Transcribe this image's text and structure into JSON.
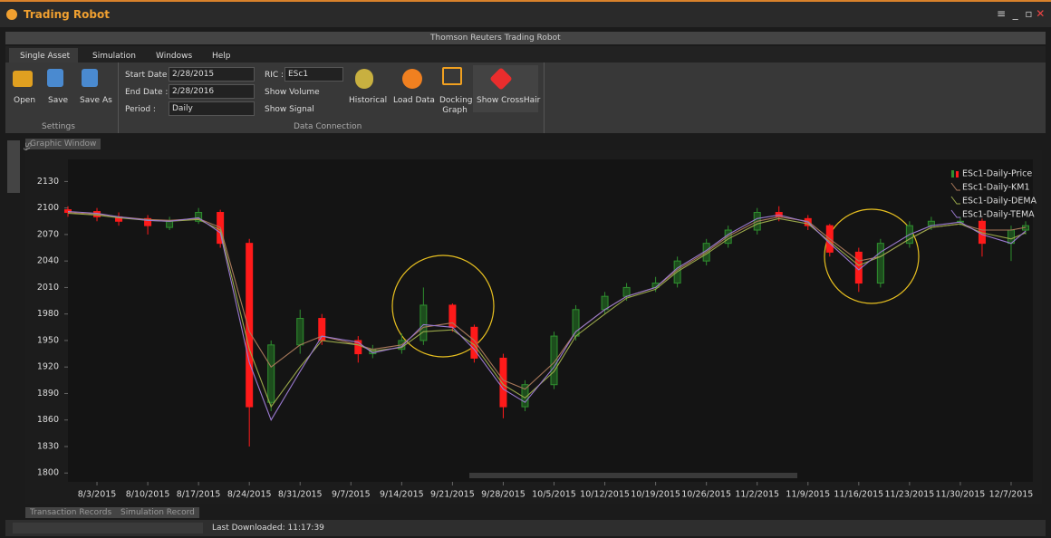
{
  "app_title": "Trading Robot",
  "window_title": "Thomson Reuters Trading Robot",
  "menu": [
    "Single Asset",
    "Simulation",
    "Windows",
    "Help"
  ],
  "ribbon": {
    "open": "Open",
    "save": "Save",
    "save_as": "Save As",
    "settings_group": "Settings",
    "start_date_label": "Start Date :",
    "start_date": "2/28/2015",
    "end_date_label": "End Date :",
    "end_date": "2/28/2016",
    "period_label": "Period :",
    "period": "Daily",
    "ric_label": "RIC :",
    "ric": "ESc1",
    "show_volume": "Show Volume",
    "show_signal": "Show Signal",
    "historical": "Historical",
    "load_data": "Load Data",
    "docking_graph": "Docking Graph",
    "show_crosshair": "Show CrossHair",
    "data_connection_group": "Data Connection"
  },
  "graphic_window_tab": "Graphic Window",
  "symbol_list": "Symbol List",
  "bottom_tabs": [
    "Transaction Records",
    "Simulation Record"
  ],
  "status": "Last Downloaded: 11:17:39",
  "chart_data": {
    "type": "candlestick",
    "x": [
      "7/30/2015",
      "8/3/2015",
      "8/6/2015",
      "8/10/2015",
      "8/13/2015",
      "8/17/2015",
      "8/20/2015",
      "8/24/2015",
      "8/27/2015",
      "8/31/2015",
      "9/3/2015",
      "9/8/2015",
      "9/10/2015",
      "9/14/2015",
      "9/17/2015",
      "9/21/2015",
      "9/24/2015",
      "9/28/2015",
      "10/1/2015",
      "10/5/2015",
      "10/8/2015",
      "10/12/2015",
      "10/15/2015",
      "10/19/2015",
      "10/22/2015",
      "10/26/2015",
      "10/29/2015",
      "11/2/2015",
      "11/5/2015",
      "11/9/2015",
      "11/12/2015",
      "11/16/2015",
      "11/19/2015",
      "11/23/2015",
      "11/26/2015",
      "11/30/2015",
      "12/3/2015",
      "12/7/2015",
      "12/9/2015"
    ],
    "candles": {
      "name": "ESc1-Daily-Price",
      "up_color": "#2f8f2f",
      "down_color": "#ff1a1a",
      "open": [
        2098,
        2096,
        2090,
        2088,
        2078,
        2085,
        2095,
        2060,
        1880,
        1945,
        1975,
        1950,
        1935,
        1940,
        1950,
        1990,
        1965,
        1930,
        1875,
        1900,
        1955,
        1985,
        2000,
        2010,
        2015,
        2040,
        2060,
        2075,
        2095,
        2088,
        2080,
        2050,
        2015,
        2060,
        2080,
        2085,
        2085,
        2060,
        2075
      ],
      "high": [
        2102,
        2100,
        2095,
        2092,
        2090,
        2100,
        2098,
        2065,
        1950,
        1985,
        1980,
        1955,
        1945,
        1958,
        2010,
        1992,
        1968,
        1935,
        1905,
        1960,
        1990,
        2005,
        2015,
        2022,
        2045,
        2065,
        2080,
        2100,
        2102,
        2092,
        2082,
        2055,
        2065,
        2085,
        2090,
        2090,
        2088,
        2080,
        2085
      ],
      "low": [
        2090,
        2085,
        2080,
        2070,
        2075,
        2082,
        2055,
        1830,
        1870,
        1935,
        1945,
        1925,
        1930,
        1935,
        1945,
        1960,
        1925,
        1862,
        1870,
        1895,
        1950,
        1980,
        1995,
        2005,
        2010,
        2035,
        2055,
        2070,
        2085,
        2075,
        2045,
        2005,
        2010,
        2055,
        2075,
        2080,
        2045,
        2040,
        2070
      ],
      "close": [
        2095,
        2090,
        2085,
        2080,
        2085,
        2095,
        2060,
        1875,
        1945,
        1975,
        1950,
        1935,
        1940,
        1950,
        1990,
        1965,
        1930,
        1875,
        1900,
        1955,
        1985,
        2000,
        2010,
        2015,
        2040,
        2060,
        2075,
        2095,
        2090,
        2080,
        2050,
        2015,
        2060,
        2080,
        2085,
        2085,
        2060,
        2075,
        2080
      ]
    },
    "series": [
      {
        "name": "ESc1-Daily-KM1",
        "color": "#a8785a",
        "values": [
          2095,
          2093,
          2090,
          2087,
          2086,
          2088,
          2078,
          1960,
          1920,
          1945,
          1955,
          1945,
          1940,
          1945,
          1965,
          1970,
          1950,
          1905,
          1895,
          1925,
          1960,
          1985,
          2000,
          2010,
          2030,
          2050,
          2068,
          2085,
          2090,
          2085,
          2065,
          2040,
          2045,
          2065,
          2078,
          2082,
          2075,
          2075,
          2078
        ]
      },
      {
        "name": "ESc1-Daily-DEMA",
        "color": "#9aa84a",
        "values": [
          2094,
          2092,
          2089,
          2086,
          2085,
          2087,
          2075,
          1940,
          1875,
          1920,
          1950,
          1945,
          1938,
          1942,
          1960,
          1962,
          1945,
          1900,
          1885,
          1915,
          1955,
          1980,
          1998,
          2008,
          2028,
          2048,
          2065,
          2082,
          2088,
          2082,
          2062,
          2035,
          2045,
          2065,
          2078,
          2082,
          2072,
          2065,
          2072
        ]
      },
      {
        "name": "ESc1-Daily-TEMA",
        "color": "#9a7ad0",
        "values": [
          2096,
          2094,
          2090,
          2086,
          2085,
          2089,
          2072,
          1925,
          1860,
          1915,
          1955,
          1948,
          1936,
          1943,
          1968,
          1965,
          1940,
          1895,
          1880,
          1920,
          1960,
          1985,
          2000,
          2010,
          2032,
          2052,
          2070,
          2088,
          2092,
          2084,
          2060,
          2030,
          2050,
          2070,
          2080,
          2084,
          2070,
          2060,
          2074
        ]
      }
    ],
    "xlim": [
      "7/30/2015",
      "12/10/2015"
    ],
    "xticks": [
      "8/3/2015",
      "8/10/2015",
      "8/17/2015",
      "8/24/2015",
      "8/31/2015",
      "9/7/2015",
      "9/14/2015",
      "9/21/2015",
      "9/28/2015",
      "10/5/2015",
      "10/12/2015",
      "10/19/2015",
      "10/26/2015",
      "11/2/2015",
      "11/9/2015",
      "11/16/2015",
      "11/23/2015",
      "11/30/2015",
      "12/7/2015"
    ],
    "ylim": [
      1790,
      2155
    ],
    "yticks": [
      1800,
      1830,
      1860,
      1890,
      1920,
      1950,
      1980,
      2010,
      2040,
      2070,
      2100,
      2130
    ],
    "legend": "upper right"
  }
}
